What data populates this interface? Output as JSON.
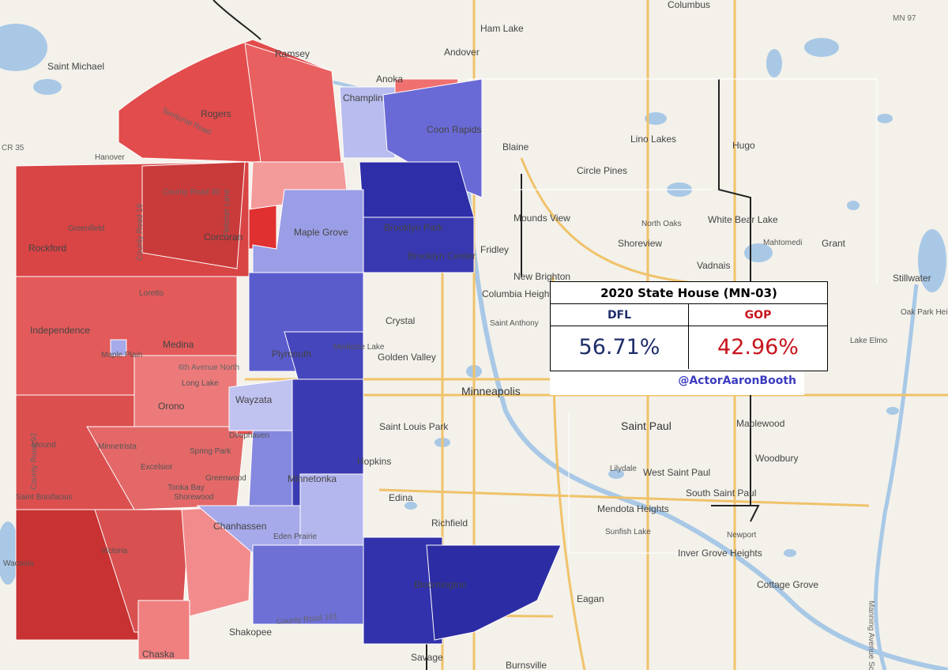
{
  "results_table": {
    "title": "2020 State House (MN-03)",
    "dfl_label": "DFL",
    "gop_label": "GOP",
    "dfl_value": "56.71%",
    "gop_value": "42.96%"
  },
  "credit": "@ActorAaronBooth",
  "colors": {
    "dfl": "#1f2d6b",
    "gop": "#c8141c",
    "basemap": "#f3f1ea",
    "water": "#a8c8e6",
    "highway": "#f0c26a"
  },
  "places": [
    "Columbus",
    "Ham Lake",
    "Andover",
    "Ramsey",
    "Anoka",
    "Champlin",
    "Coon Rapids",
    "Saint Michael",
    "Rogers",
    "Hanover",
    "Blaine",
    "Lino Lakes",
    "Hugo",
    "Circle Pines",
    "Mounds View",
    "North Oaks",
    "White Bear Lake",
    "Grant",
    "Mahtomedi",
    "Stillwater",
    "Shoreview",
    "Vadnais",
    "Fridley",
    "Brooklyn Park",
    "Brooklyn Center",
    "Maple Grove",
    "Greenfield",
    "Corcoran",
    "Rockford",
    "Loretto",
    "New Brighton",
    "Columbia Heights",
    "Saint Anthony",
    "Oak Park Heights",
    "Lake Elmo",
    "Independence",
    "Medina",
    "Maple Plain",
    "Crystal",
    "Plymouth",
    "Medicine Lake",
    "Golden Valley",
    "Minneapolis",
    "Long Lake",
    "Orono",
    "Wayzata",
    "Saint Paul",
    "Maplewood",
    "Woodbury",
    "Saint Louis Park",
    "Minnetrista",
    "Mound",
    "Spring Park",
    "Deephaven",
    "Hopkins",
    "Minnetonka",
    "Tonka Bay",
    "Shorewood",
    "Greenwood",
    "Excelsior",
    "Saint Bonifacius",
    "Lilydale",
    "West Saint Paul",
    "South Saint Paul",
    "Mendota Heights",
    "Sunfish Lake",
    "Edina",
    "Richfield",
    "Chanhassen",
    "Eden Prairie",
    "Victoria",
    "Waconia",
    "Bloomington",
    "Inver Grove Heights",
    "Newport",
    "Cottage Grove",
    "Eagan",
    "Shakopee",
    "Chaska",
    "Savage",
    "Burnsville"
  ],
  "roads": [
    "Territorial Road",
    "County Road 30",
    "County Road 19",
    "Fletcher Lane",
    "6th Avenue North",
    "County Road 92",
    "County Road 101",
    "MN 97",
    "CR 35",
    "Manning Avenue South"
  ]
}
